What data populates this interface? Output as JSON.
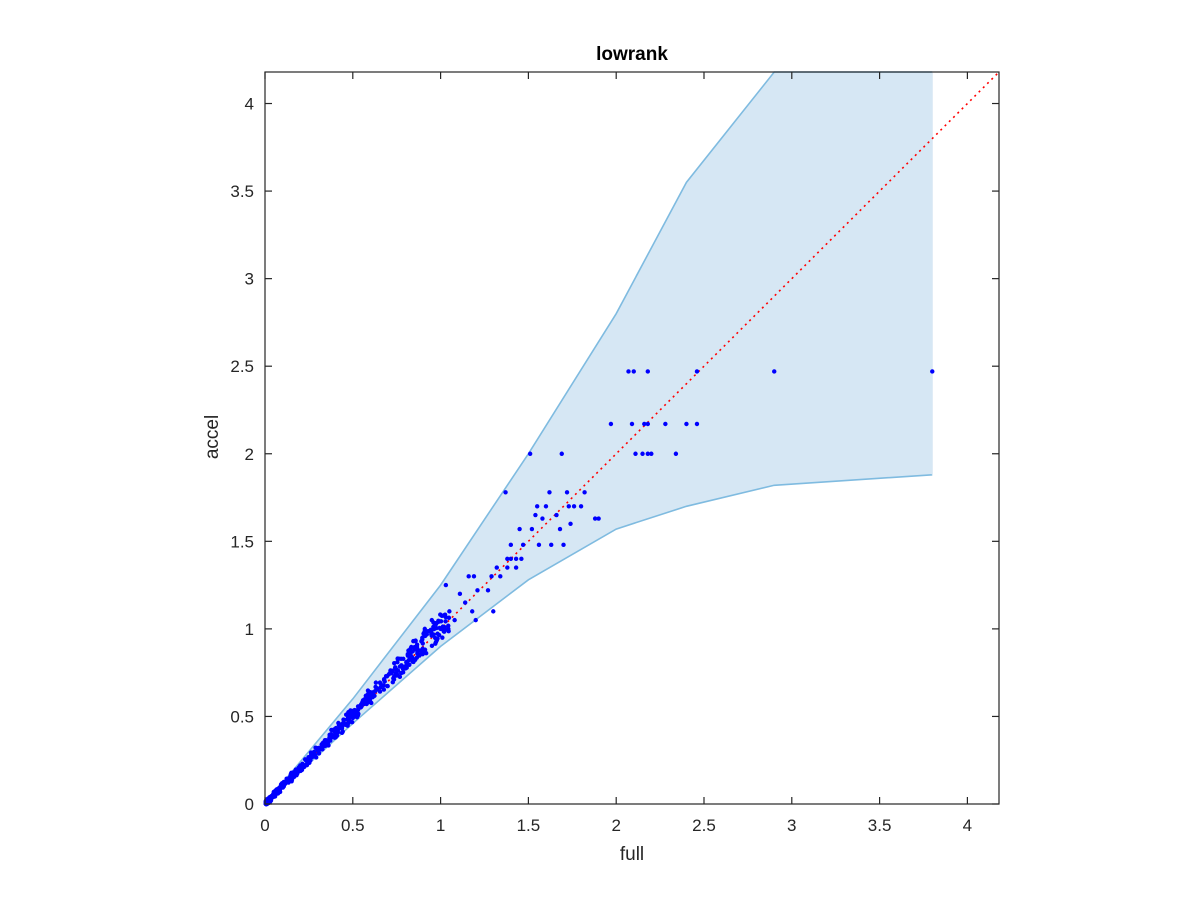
{
  "chart_data": {
    "type": "scatter",
    "title": "lowrank",
    "xlabel": "full",
    "ylabel": "accel",
    "xlim": [
      0,
      4.18
    ],
    "ylim": [
      0,
      4.18
    ],
    "xticks": [
      0,
      0.5,
      1,
      1.5,
      2,
      2.5,
      3,
      3.5,
      4
    ],
    "xtick_labels": [
      "0",
      "0.5",
      "1",
      "1.5",
      "2",
      "2.5",
      "3",
      "3.5",
      "4"
    ],
    "yticks": [
      0,
      0.5,
      1,
      1.5,
      2,
      2.5,
      3,
      3.5,
      4
    ],
    "ytick_labels": [
      "0",
      "0.5",
      "1",
      "1.5",
      "2",
      "2.5",
      "3",
      "3.5",
      "4"
    ],
    "grid": false,
    "colors": {
      "points": "#0000ff",
      "band_fill": "#d6e7f4",
      "band_edge": "#7fbbe0",
      "identity_line": "#ff0000",
      "axes": "#262626"
    },
    "band": {
      "x": [
        0,
        0.5,
        1.0,
        1.5,
        2.0,
        2.4,
        2.9,
        3.8
      ],
      "upper": [
        0,
        0.6,
        1.25,
        2.0,
        2.8,
        3.55,
        4.2,
        4.2
      ],
      "lower": [
        0,
        0.46,
        0.9,
        1.28,
        1.57,
        1.7,
        1.82,
        1.88
      ]
    },
    "identity_line": {
      "x": [
        0,
        4.18
      ],
      "y": [
        0,
        4.18
      ]
    },
    "points": [
      [
        2.07,
        2.47
      ],
      [
        2.1,
        2.47
      ],
      [
        2.18,
        2.47
      ],
      [
        2.46,
        2.47
      ],
      [
        2.9,
        2.47
      ],
      [
        3.8,
        2.47
      ],
      [
        1.97,
        2.17
      ],
      [
        2.09,
        2.17
      ],
      [
        2.16,
        2.17
      ],
      [
        2.18,
        2.17
      ],
      [
        2.28,
        2.17
      ],
      [
        2.4,
        2.17
      ],
      [
        2.46,
        2.17
      ],
      [
        2.11,
        2.0
      ],
      [
        2.15,
        2.0
      ],
      [
        2.18,
        2.0
      ],
      [
        2.2,
        2.0
      ],
      [
        2.34,
        2.0
      ],
      [
        1.51,
        2.0
      ],
      [
        1.69,
        2.0
      ],
      [
        1.58,
        1.63
      ],
      [
        1.88,
        1.63
      ],
      [
        1.9,
        1.63
      ],
      [
        1.37,
        1.78
      ],
      [
        1.62,
        1.78
      ],
      [
        1.72,
        1.78
      ],
      [
        1.82,
        1.78
      ],
      [
        1.55,
        1.7
      ],
      [
        1.6,
        1.7
      ],
      [
        1.73,
        1.7
      ],
      [
        1.76,
        1.7
      ],
      [
        1.8,
        1.7
      ],
      [
        1.45,
        1.57
      ],
      [
        1.52,
        1.57
      ],
      [
        1.68,
        1.57
      ],
      [
        1.4,
        1.48
      ],
      [
        1.47,
        1.48
      ],
      [
        1.56,
        1.48
      ],
      [
        1.63,
        1.48
      ],
      [
        1.7,
        1.48
      ],
      [
        1.38,
        1.4
      ],
      [
        1.4,
        1.4
      ],
      [
        1.43,
        1.4
      ],
      [
        1.46,
        1.4
      ],
      [
        1.32,
        1.35
      ],
      [
        1.38,
        1.35
      ],
      [
        1.43,
        1.35
      ],
      [
        1.54,
        1.65
      ],
      [
        1.66,
        1.65
      ],
      [
        1.74,
        1.6
      ],
      [
        1.29,
        1.3
      ],
      [
        1.34,
        1.3
      ],
      [
        1.27,
        1.22
      ],
      [
        1.21,
        1.22
      ],
      [
        1.19,
        1.3
      ],
      [
        1.16,
        1.3
      ],
      [
        1.11,
        1.2
      ],
      [
        1.14,
        1.15
      ],
      [
        1.03,
        1.25
      ],
      [
        1.05,
        1.1
      ],
      [
        1.08,
        1.05
      ],
      [
        1.18,
        1.1
      ],
      [
        1.0,
        1.0
      ],
      [
        1.01,
        0.95
      ],
      [
        0.95,
        1.05
      ],
      [
        0.91,
        1.0
      ],
      [
        1.2,
        1.05
      ],
      [
        1.3,
        1.1
      ]
    ]
  }
}
